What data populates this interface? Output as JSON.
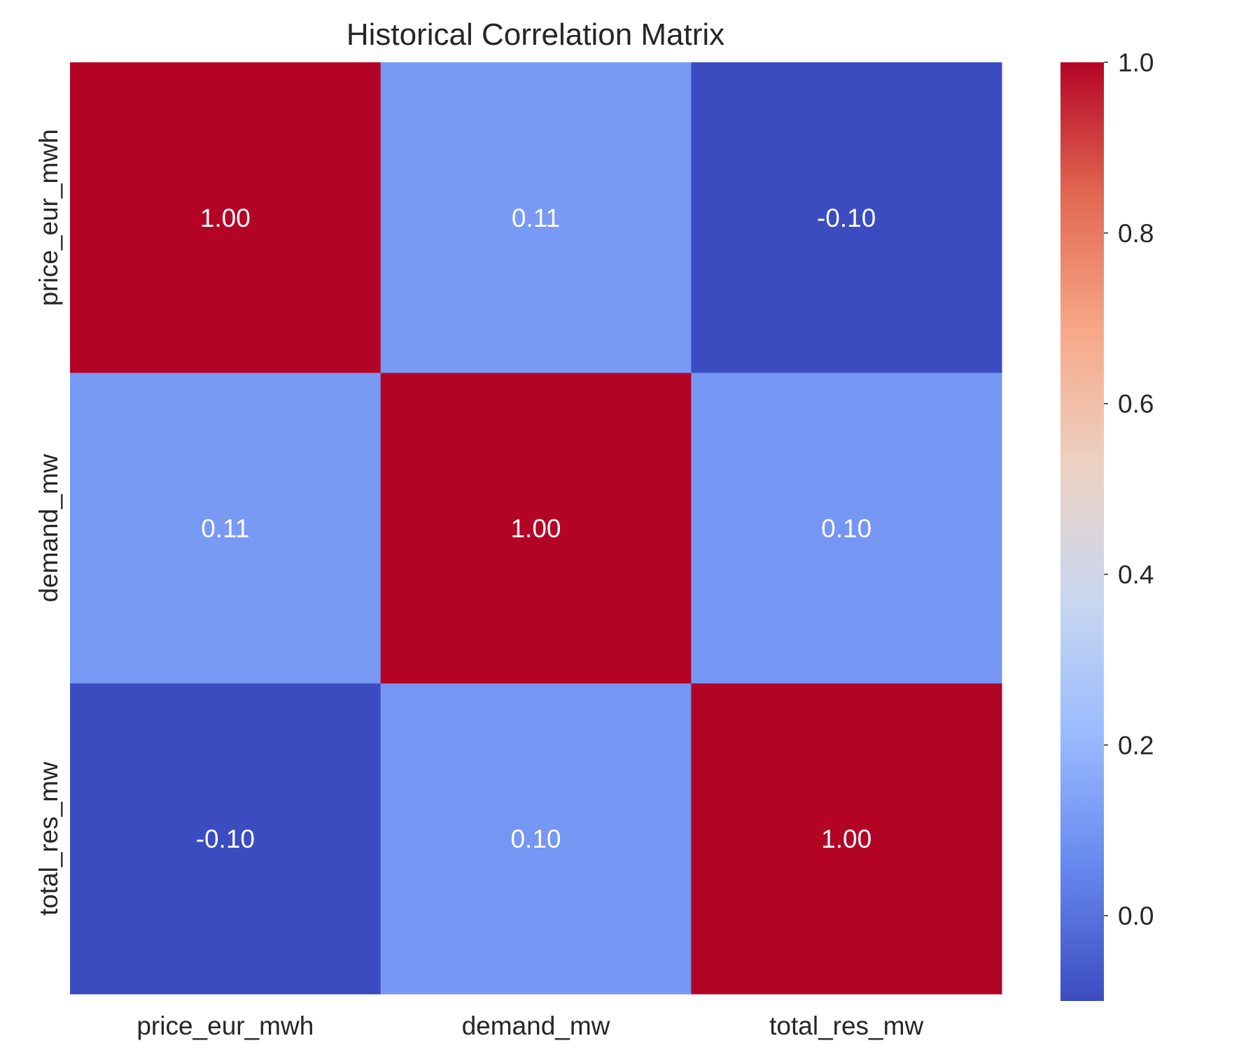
{
  "chart_data": {
    "type": "heatmap",
    "title": "Historical Correlation Matrix",
    "xlabel": "",
    "ylabel": "",
    "x_categories": [
      "price_eur_mwh",
      "demand_mw",
      "total_res_mw"
    ],
    "y_categories": [
      "price_eur_mwh",
      "demand_mw",
      "total_res_mw"
    ],
    "values": [
      [
        1.0,
        0.11,
        -0.1
      ],
      [
        0.11,
        1.0,
        0.1
      ],
      [
        -0.1,
        0.1,
        1.0
      ]
    ],
    "annotations": [
      [
        "1.00",
        "0.11",
        "-0.10"
      ],
      [
        "0.11",
        "1.00",
        "0.10"
      ],
      [
        "-0.10",
        "0.10",
        "1.00"
      ]
    ],
    "colormap": "coolwarm",
    "colorbar": {
      "vmin": -0.1,
      "vmax": 1.0,
      "ticks": [
        0.0,
        0.2,
        0.4,
        0.6,
        0.8,
        1.0
      ],
      "tick_labels": [
        "0.0",
        "0.2",
        "0.4",
        "0.6",
        "0.8",
        "1.0"
      ]
    },
    "colormap_stops": [
      "#3b4cc0",
      "#6788ee",
      "#9abbff",
      "#c9d7f0",
      "#edd1c2",
      "#f7a889",
      "#e26952",
      "#b40426"
    ]
  }
}
